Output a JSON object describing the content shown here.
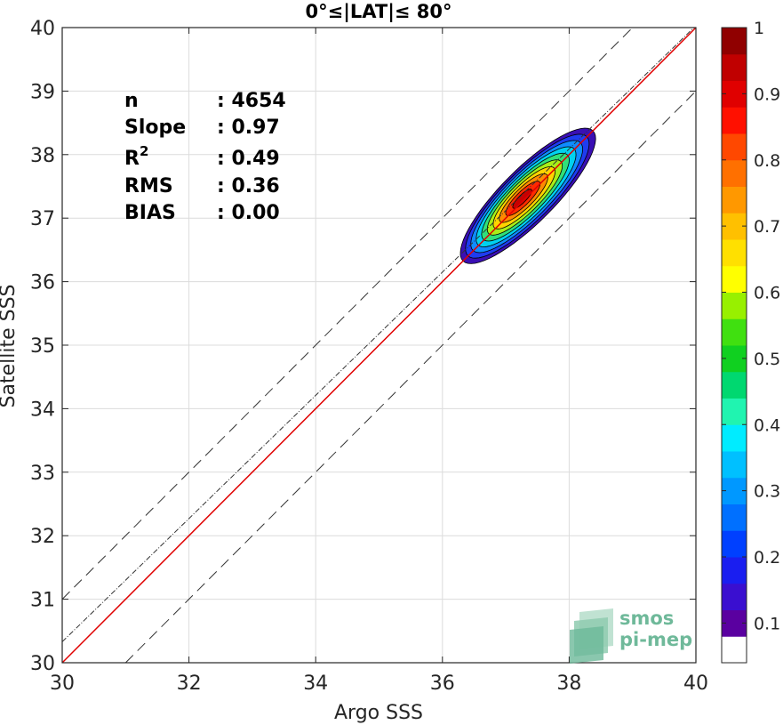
{
  "chart_data": {
    "type": "contour-scatter",
    "title": "0°≤|LAT|≤ 80°",
    "xlabel": "Argo SSS",
    "ylabel": "Satellite SSS",
    "xlim": [
      30,
      40
    ],
    "ylim": [
      30,
      40
    ],
    "xticks": [
      30,
      32,
      34,
      36,
      38,
      40
    ],
    "yticks": [
      30,
      31,
      32,
      33,
      34,
      35,
      36,
      37,
      38,
      39,
      40
    ],
    "grid": true,
    "stats": [
      {
        "label": "n",
        "value": ": 4654"
      },
      {
        "label": "Slope",
        "value": ": 0.97"
      },
      {
        "label": "R",
        "sup": "2",
        "value": ": 0.49"
      },
      {
        "label": "RMS",
        "value": ": 0.36"
      },
      {
        "label": "BIAS",
        "value": ": 0.00"
      }
    ],
    "lines": [
      {
        "type": "identity",
        "color": "#e00000",
        "slope": 1,
        "intercept": 0
      },
      {
        "type": "regression",
        "color": "#333333",
        "style": "dash-dot",
        "slope": 0.97,
        "intercept": 1.23
      },
      {
        "type": "upper-bound",
        "color": "#333333",
        "style": "dashed",
        "offset": 1.0
      },
      {
        "type": "lower-bound",
        "color": "#333333",
        "style": "dashed",
        "offset": -1.0
      }
    ],
    "density": {
      "center": [
        37.35,
        37.35
      ],
      "levels": [
        0.05,
        0.15,
        0.25,
        0.35,
        0.45,
        0.55,
        0.65,
        0.75,
        0.85,
        0.95
      ],
      "colors": [
        "#3a0fb4",
        "#1f3cf0",
        "#0f8cff",
        "#00d2f0",
        "#30e07a",
        "#a8ee18",
        "#ffd400",
        "#ff8a00",
        "#ff2a00",
        "#c80000"
      ]
    },
    "colorbar": {
      "ticks": [
        0.1,
        0.2,
        0.3,
        0.4,
        0.5,
        0.6,
        0.7,
        0.8,
        0.9,
        1
      ],
      "tick_labels": [
        "0.1",
        "0.2",
        "0.3",
        "0.4",
        "0.5",
        "0.6",
        "0.7",
        "0.8",
        "0.9",
        "1"
      ],
      "colors": [
        "#ffffff",
        "#5a00a0",
        "#3a0fd0",
        "#1a1ef0",
        "#0040ff",
        "#0070ff",
        "#0098ff",
        "#00c0ff",
        "#00ecff",
        "#20f4b0",
        "#00d870",
        "#10d020",
        "#40e010",
        "#98f000",
        "#ffff00",
        "#ffe000",
        "#ffc000",
        "#ff9800",
        "#ff7000",
        "#ff4800",
        "#ff1000",
        "#e00000",
        "#c00000",
        "#900000"
      ]
    }
  },
  "logo": {
    "line1": "smos",
    "line2": "pi-mep"
  }
}
